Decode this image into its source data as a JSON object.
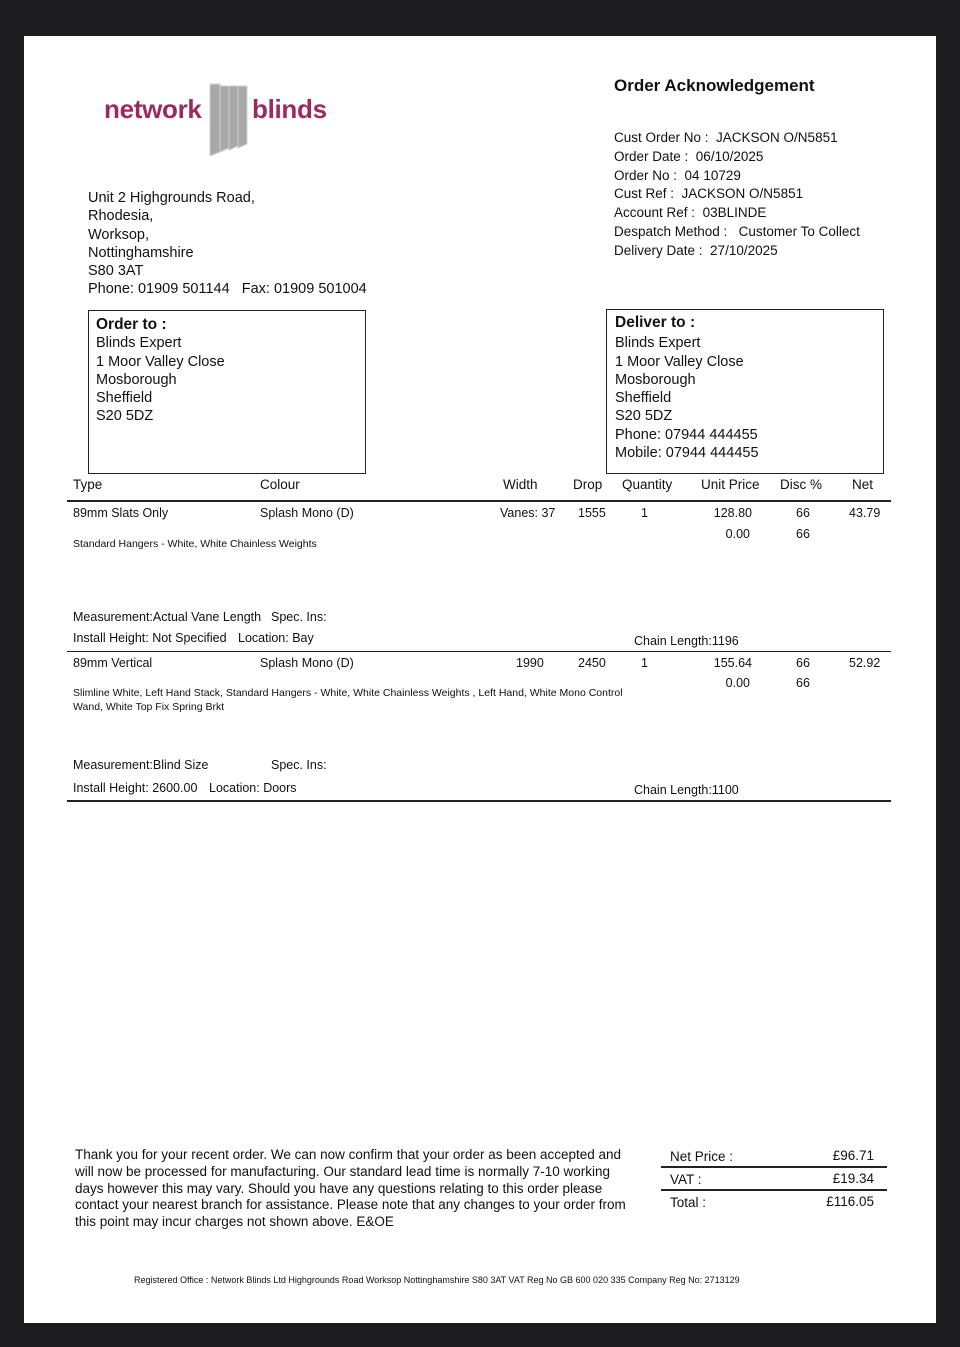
{
  "company": {
    "logo_left": "network",
    "logo_right": "blinds",
    "brand_color": "#9b2a5e",
    "address": [
      "Unit 2 Highgrounds Road,",
      "Rhodesia,",
      "Worksop,",
      "Nottinghamshire",
      "S80 3AT"
    ],
    "phone": "Phone: 01909 501144",
    "fax": "Fax: 01909 501004"
  },
  "doc_title": "Order Acknowledgement",
  "order_info": [
    {
      "label": "Cust Order No :",
      "value": "JACKSON O/N5851"
    },
    {
      "label": "Order Date :",
      "value": "06/10/2025"
    },
    {
      "label": "Order No :",
      "value": "04 10729"
    },
    {
      "label": "Cust Ref :",
      "value": "JACKSON O/N5851"
    },
    {
      "label": "Account Ref :",
      "value": "03BLINDE"
    },
    {
      "label": "Despatch Method :",
      "value": "Customer To Collect"
    },
    {
      "label": "Delivery Date :",
      "value": "27/10/2025"
    }
  ],
  "order_to": {
    "title": "Order to :",
    "lines": [
      "Blinds Expert",
      "1 Moor Valley Close",
      "Mosborough",
      "Sheffield",
      "S20 5DZ"
    ]
  },
  "deliver_to": {
    "title": "Deliver to :",
    "lines": [
      "Blinds Expert",
      "1 Moor Valley Close",
      "Mosborough",
      "Sheffield",
      "S20 5DZ",
      "Phone: 07944 444455",
      "Mobile: 07944 444455"
    ]
  },
  "columns": [
    "Type",
    "Colour",
    "Width",
    "Drop",
    "Quantity",
    "Unit Price",
    "Disc %",
    "Net"
  ],
  "items": [
    {
      "type": "89mm Slats Only",
      "colour": "Splash Mono (D)",
      "width": "Vanes: 37",
      "drop": "1555",
      "qty": "1",
      "unit_price": "128.80",
      "disc": "66",
      "net": "43.79",
      "unit_price2": "0.00",
      "disc2": "66",
      "desc": "Standard Hangers - White, White Chainless Weights",
      "desc2": "",
      "measurement": "Measurement:Actual Vane Length",
      "spec": "Spec. Ins:",
      "install": "Install Height: Not Specified",
      "location": "Location: Bay",
      "chain_label": "Chain Length:",
      "chain": "1196"
    },
    {
      "type": "89mm Vertical",
      "colour": "Splash Mono (D)",
      "width": "1990",
      "drop": "2450",
      "qty": "1",
      "unit_price": "155.64",
      "disc": "66",
      "net": "52.92",
      "unit_price2": "0.00",
      "disc2": "66",
      "desc": "Slimline White, Left Hand Stack, Standard Hangers - White, White Chainless Weights , Left Hand, White Mono Control",
      "desc2": "Wand, White Top Fix Spring Brkt",
      "measurement": "Measurement:Blind Size",
      "spec": "Spec. Ins:",
      "install": "Install Height: 2600.00",
      "location": "Location: Doors",
      "chain_label": "Chain Length:",
      "chain": "1100"
    }
  ],
  "message": [
    "Thank you for your recent order. We can now confirm that your order as been accepted and",
    "will now be processed for manufacturing. Our standard lead time is normally 7-10 working",
    "days however this may vary. Should you have any questions relating to this order please",
    "contact your nearest branch for assistance. Please note that any changes to your order from",
    "this point may incur charges not shown above. E&OE"
  ],
  "totals": [
    {
      "label": "Net Price :",
      "value": "£96.71"
    },
    {
      "label": "VAT :",
      "value": "£19.34"
    },
    {
      "label": "Total :",
      "value": "£116.05"
    }
  ],
  "footer": "Registered Office : Network Blinds Ltd Highgrounds Road Worksop Nottinghamshire S80 3AT  VAT Reg No GB 600 020 335 Company Reg No: 2713129"
}
